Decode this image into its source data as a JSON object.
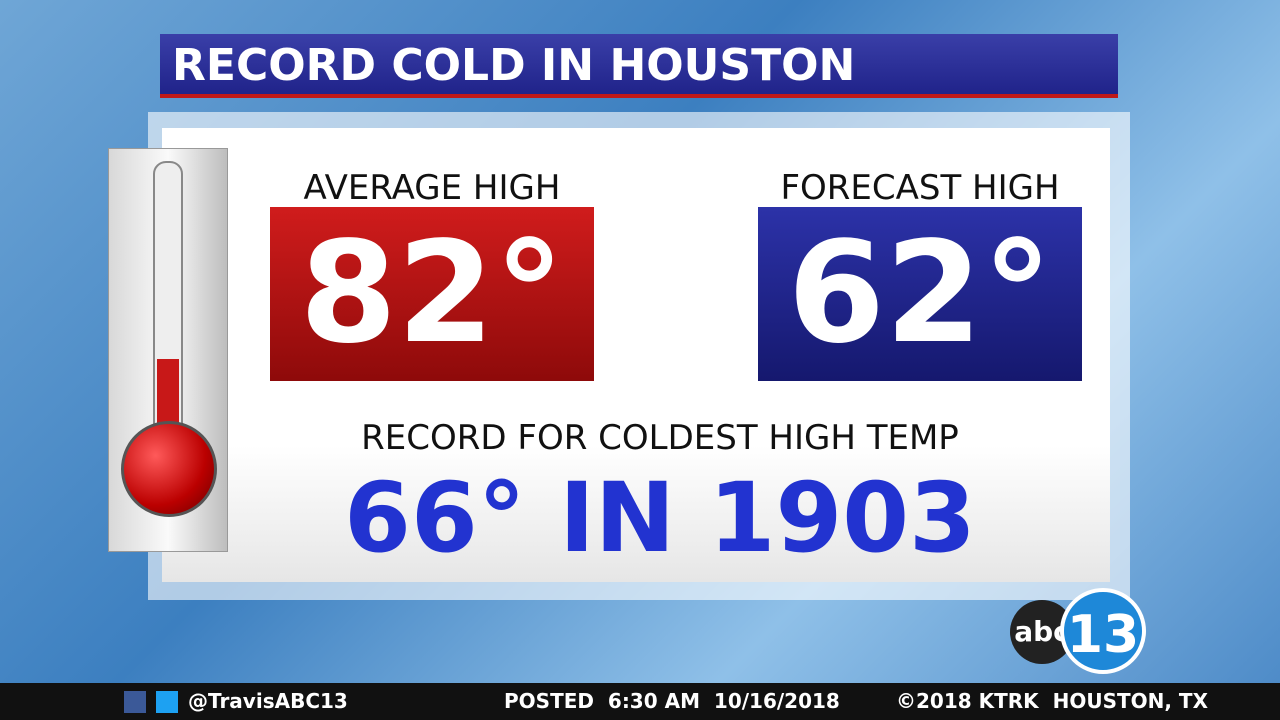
{
  "header": {
    "title": "RECORD COLD IN HOUSTON"
  },
  "average": {
    "label": "AVERAGE HIGH",
    "value": "82°"
  },
  "forecast": {
    "label": "FORECAST HIGH",
    "value": "62°"
  },
  "record": {
    "label": "RECORD FOR COLDEST HIGH TEMP",
    "value": "66° IN 1903"
  },
  "logo": {
    "network": "abc",
    "channel": "13"
  },
  "footer": {
    "handle": "@TravisABC13",
    "posted": "POSTED  6:30 AM  10/16/2018",
    "copyright": "©2018 KTRK  HOUSTON, TX"
  }
}
